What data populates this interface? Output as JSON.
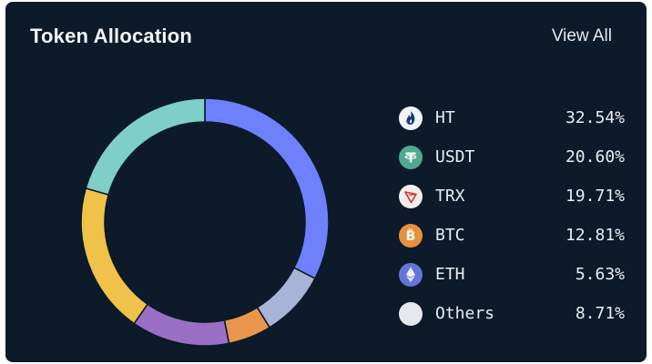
{
  "header": {
    "title": "Token Allocation",
    "view_all": "View All"
  },
  "chart_data": {
    "type": "pie",
    "title": "Token Allocation",
    "hole": "donut",
    "start": "top",
    "direction": "clockwise",
    "categories": [
      "HT",
      "USDT",
      "TRX",
      "BTC",
      "ETH",
      "Others"
    ],
    "values": [
      32.54,
      20.6,
      19.71,
      12.81,
      5.63,
      8.71
    ],
    "labels": [
      "32.54%",
      "20.60%",
      "19.71%",
      "12.81%",
      "5.63%",
      "8.71%"
    ],
    "segment_order": [
      "HT",
      "Others",
      "ETH",
      "BTC",
      "TRX",
      "USDT"
    ],
    "colors": {
      "HT": "#6e80fb",
      "USDT": "#7ecfc8",
      "TRX": "#f0c24a",
      "BTC": "#9a6fc6",
      "ETH": "#e9954e",
      "Others": "#a8b4d6"
    },
    "icons": {
      "HT": "huobi-token-icon",
      "USDT": "tether-icon",
      "TRX": "tron-icon",
      "BTC": "bitcoin-icon",
      "ETH": "ethereum-icon",
      "Others": "others-icon"
    },
    "icon_colors": {
      "HT": "#f1f4f8",
      "USDT": "#51a88e",
      "TRX": "#f2eeee",
      "BTC": "#e8913a",
      "ETH": "#6376d8",
      "Others": "#e6e8ec"
    },
    "legend_position": "right"
  }
}
